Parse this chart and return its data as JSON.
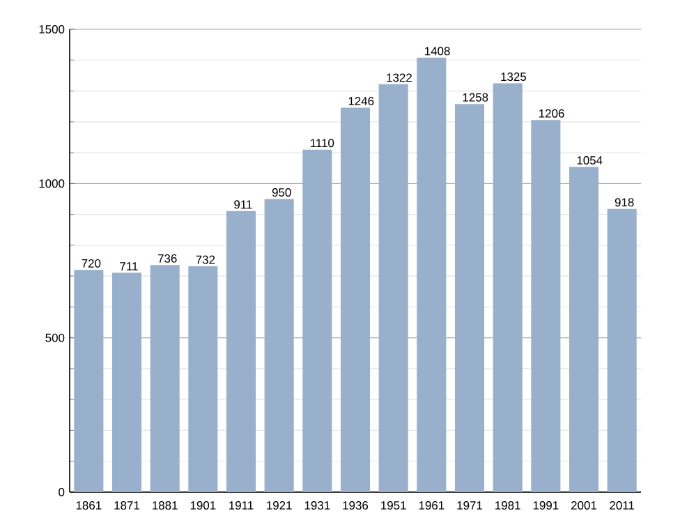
{
  "chart_data": {
    "type": "bar",
    "categories": [
      "1861",
      "1871",
      "1881",
      "1901",
      "1911",
      "1921",
      "1931",
      "1936",
      "1951",
      "1961",
      "1971",
      "1981",
      "1991",
      "2001",
      "2011"
    ],
    "values": [
      720,
      711,
      736,
      732,
      911,
      950,
      1110,
      1246,
      1322,
      1408,
      1258,
      1325,
      1206,
      1054,
      918
    ],
    "color": "#98b0cc",
    "ylim": [
      0,
      1500
    ],
    "yticks": [
      0,
      500,
      1000,
      1500
    ],
    "grid": "y",
    "data_labels": true
  }
}
